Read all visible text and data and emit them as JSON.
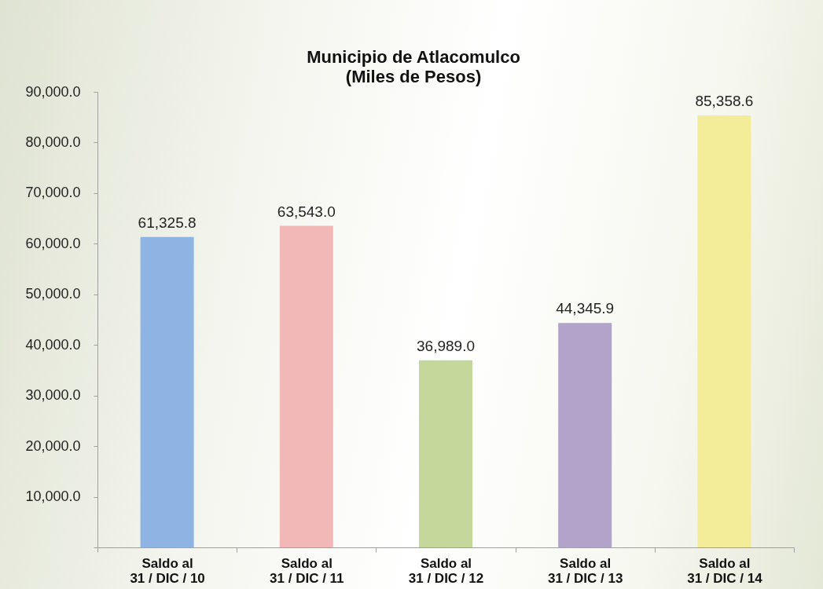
{
  "chart_data": {
    "type": "bar",
    "title": "Municipio de Atlacomulco",
    "subtitle": "(Miles de Pesos)",
    "categories": [
      "Saldo al\n31 / DIC / 10",
      "Saldo al\n31 / DIC / 11",
      "Saldo al\n31 / DIC / 12",
      "Saldo al\n31 / DIC / 13",
      "Saldo al\n31 / DIC / 14"
    ],
    "values": [
      61325.8,
      63543.0,
      36989.0,
      44345.9,
      85358.6
    ],
    "value_labels": [
      "61,325.8",
      "63,543.0",
      "36,989.0",
      "44,345.9",
      "85,358.6"
    ],
    "colors": [
      "#8eb4e3",
      "#f2b8b8",
      "#c4d89c",
      "#b2a3cb",
      "#f3ec98"
    ],
    "ylim": [
      0,
      90000
    ],
    "yticks": [
      {
        "value": 0,
        "label": null
      },
      {
        "value": 10000,
        "label": "10,000.0"
      },
      {
        "value": 20000,
        "label": "20,000.0"
      },
      {
        "value": 30000,
        "label": "30,000.0"
      },
      {
        "value": 40000,
        "label": "40,000.0"
      },
      {
        "value": 50000,
        "label": "50,000.0"
      },
      {
        "value": 60000,
        "label": "60,000.0"
      },
      {
        "value": 70000,
        "label": "70,000.0"
      },
      {
        "value": 80000,
        "label": "80,000.0"
      },
      {
        "value": 90000,
        "label": "90,000.0"
      }
    ]
  }
}
